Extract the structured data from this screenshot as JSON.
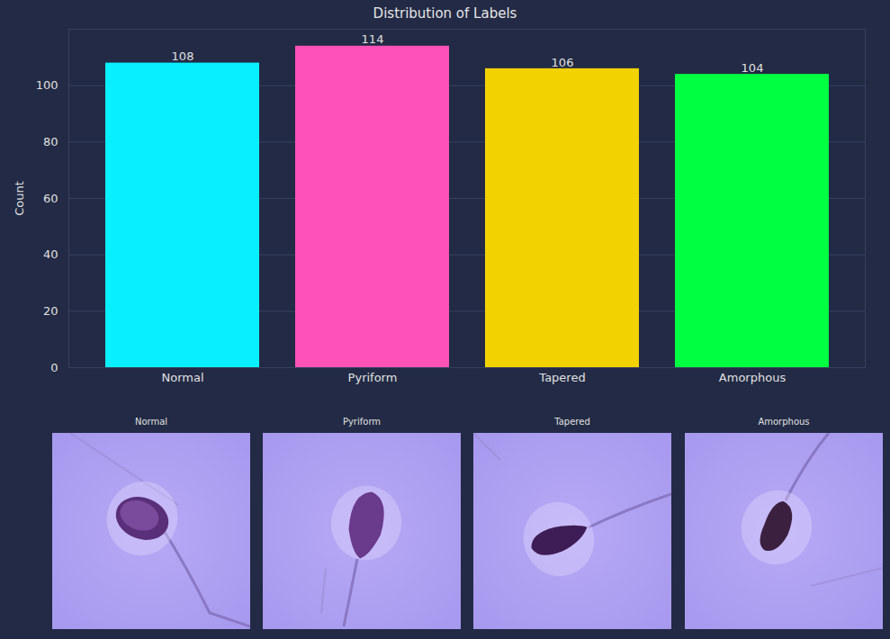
{
  "chart_data": {
    "type": "bar",
    "title": "Distribution of Labels",
    "y_label": "Count",
    "categories": [
      "Normal",
      "Pyriform",
      "Tapered",
      "Amorphous"
    ],
    "values": [
      108,
      114,
      106,
      104
    ],
    "colors": [
      "#08f0ff",
      "#ff52b8",
      "#f2d200",
      "#00ff40"
    ],
    "ylim": [
      0,
      120
    ],
    "yticks": [
      0,
      20,
      40,
      60,
      80,
      100
    ],
    "grid": true,
    "data_labels": true
  },
  "sample_titles": [
    "Normal",
    "Pyriform",
    "Tapered",
    "Amorphous"
  ]
}
